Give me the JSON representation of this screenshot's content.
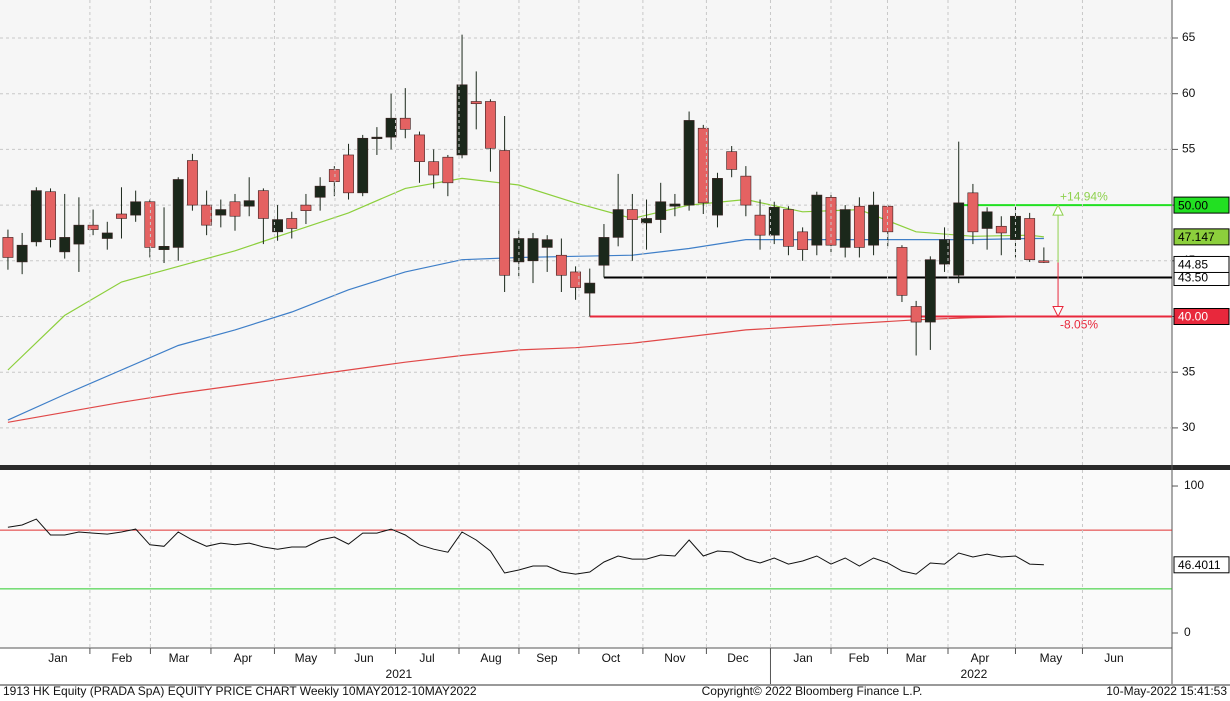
{
  "chart_data": [
    {
      "type": "candlestick",
      "open": [
        47.1,
        44.9,
        46.7,
        51.2,
        45.8,
        46.5,
        48.2,
        47.0,
        49.2,
        49.1,
        50.3,
        46.0,
        46.2,
        54.0,
        50.0,
        49.1,
        50.3,
        49.9,
        51.3,
        47.6,
        48.8,
        50.0,
        50.7,
        53.2,
        54.5,
        51.1,
        56.0,
        56.1,
        57.8,
        56.3,
        53.9,
        54.3,
        54.5,
        59.3,
        59.3,
        54.9,
        44.9,
        45.0,
        46.2,
        45.5,
        44.0,
        42.1,
        44.6,
        47.1,
        49.6,
        48.4,
        48.7,
        49.9,
        50.0,
        56.9,
        49.1,
        54.8,
        52.6,
        49.1,
        47.3,
        49.6,
        47.6,
        46.4,
        50.7,
        46.2,
        49.9,
        46.4,
        49.9,
        46.2,
        40.9,
        39.5,
        44.7,
        43.7,
        51.1,
        47.9,
        48.1,
        46.9,
        48.8,
        45.0
      ],
      "high": [
        47.8,
        47.5,
        51.6,
        51.5,
        51.0,
        50.7,
        49.6,
        48.5,
        51.6,
        51.3,
        50.5,
        49.8,
        52.5,
        54.6,
        51.3,
        50.5,
        51.0,
        52.5,
        51.5,
        50.0,
        49.4,
        51.0,
        52.5,
        53.5,
        55.5,
        56.3,
        57.0,
        60.0,
        60.5,
        56.6,
        55.0,
        54.5,
        65.3,
        62.0,
        59.5,
        58.0,
        47.8,
        47.5,
        47.3,
        47.0,
        44.5,
        44.3,
        48.3,
        52.8,
        51.0,
        50.5,
        52.0,
        51.0,
        58.4,
        57.2,
        52.9,
        55.3,
        53.5,
        50.5,
        50.3,
        49.9,
        48.0,
        51.2,
        51.0,
        50.0,
        50.7,
        51.2,
        50.0,
        46.4,
        41.4,
        45.4,
        48.0,
        55.7,
        51.9,
        49.8,
        49.0,
        49.9,
        49.3,
        46.2
      ],
      "low": [
        44.2,
        43.8,
        46.3,
        46.2,
        45.2,
        44.0,
        47.3,
        46.0,
        47.0,
        48.5,
        45.3,
        44.8,
        45.0,
        49.5,
        47.3,
        48.0,
        47.7,
        49.0,
        46.5,
        46.8,
        47.0,
        48.3,
        49.5,
        50.8,
        50.5,
        50.8,
        54.5,
        55.0,
        56.0,
        52.0,
        51.5,
        50.8,
        54.2,
        56.8,
        53.0,
        42.2,
        43.6,
        43.0,
        44.0,
        42.2,
        41.5,
        40.0,
        43.5,
        46.3,
        45.0,
        46.0,
        47.5,
        49.0,
        49.5,
        49.2,
        48.0,
        52.5,
        49.0,
        46.0,
        46.5,
        45.5,
        45.0,
        45.5,
        45.5,
        45.3,
        45.3,
        45.5,
        46.3,
        41.3,
        36.5,
        37.0,
        44.0,
        43.0,
        46.5,
        46.0,
        45.5,
        45.3,
        44.9,
        44.8
      ],
      "close": [
        45.3,
        46.4,
        51.3,
        46.9,
        47.1,
        48.2,
        47.8,
        47.5,
        48.8,
        50.3,
        46.2,
        46.3,
        52.3,
        50.0,
        48.2,
        49.6,
        49.0,
        50.4,
        48.8,
        48.7,
        47.9,
        49.5,
        51.7,
        52.1,
        51.1,
        56.0,
        56.1,
        57.8,
        56.8,
        53.9,
        52.7,
        52.0,
        60.8,
        59.1,
        55.1,
        43.7,
        47.0,
        47.0,
        46.9,
        43.7,
        42.6,
        43.0,
        47.1,
        49.6,
        48.7,
        48.8,
        50.3,
        50.1,
        57.6,
        50.2,
        52.4,
        53.2,
        50.0,
        47.3,
        49.8,
        46.3,
        46.0,
        50.9,
        46.4,
        49.6,
        46.2,
        50.0,
        47.6,
        41.9,
        39.5,
        45.1,
        46.9,
        50.2,
        47.6,
        49.4,
        47.5,
        49.0,
        45.1,
        44.85
      ],
      "up_color": "#1b281b",
      "down_color": "#e46262",
      "xlim": [
        -0.56,
        82.03
      ],
      "ylim": [
        26.67,
        68.41
      ],
      "yticks": [
        30,
        35,
        40,
        45,
        50,
        55,
        60,
        65
      ],
      "grid": true,
      "moving_averages": [
        {
          "color": "#8ccf3c",
          "value_box": true,
          "x": [
            0,
            4,
            8,
            12,
            16,
            20,
            24,
            28,
            32,
            36,
            40,
            44,
            48,
            52,
            56,
            60,
            64,
            68,
            72,
            73
          ],
          "values": [
            35.2,
            40.1,
            43.1,
            44.5,
            45.9,
            47.6,
            49.3,
            51.5,
            52.4,
            51.8,
            50.2,
            48.8,
            50.0,
            50.5,
            49.4,
            49.6,
            47.6,
            47.2,
            47.3,
            47.147
          ]
        },
        {
          "color": "#3f7fc8",
          "value_box": false,
          "x": [
            0,
            4,
            8,
            12,
            16,
            20,
            24,
            28,
            32,
            36,
            40,
            44,
            48,
            52,
            56,
            60,
            64,
            68,
            72,
            73
          ],
          "values": [
            30.7,
            33.0,
            35.2,
            37.4,
            38.8,
            40.4,
            42.4,
            44.0,
            45.1,
            45.3,
            45.4,
            45.5,
            46.1,
            46.9,
            46.9,
            46.9,
            46.9,
            46.9,
            47.0,
            47.0
          ]
        },
        {
          "color": "#e04848",
          "value_box": false,
          "x": [
            0,
            4,
            8,
            12,
            16,
            20,
            24,
            28,
            32,
            36,
            40,
            44,
            48,
            52,
            56,
            60,
            64,
            68,
            72,
            73
          ],
          "values": [
            30.5,
            31.4,
            32.3,
            33.1,
            33.8,
            34.5,
            35.2,
            35.9,
            36.5,
            37.0,
            37.2,
            37.6,
            38.2,
            38.8,
            39.1,
            39.4,
            39.7,
            39.9,
            40.0,
            40.0
          ]
        }
      ],
      "levels": [
        {
          "value": 50,
          "label": "50.00",
          "color": "#22e022",
          "text_color": "#000000",
          "from_x": 67
        },
        {
          "value": 43.5,
          "label": "43.50",
          "color": "#000000",
          "text_color": "#000000",
          "from_x": 42
        },
        {
          "value": 40,
          "label": "40.00",
          "color": "#e8283c",
          "text_color": "#ffffff",
          "from_x": 41
        }
      ],
      "annotations": [
        {
          "text": "+14.94%",
          "color": "#8fd14f",
          "level": 0,
          "arrow_x": 74
        },
        {
          "text": "-8.05%",
          "color": "#e8283c",
          "level": 2,
          "arrow_x": 74
        }
      ]
    },
    {
      "type": "line",
      "values": [
        72,
        73.5,
        77.5,
        66.7,
        66.7,
        68.7,
        68,
        67.3,
        68.7,
        70.7,
        60,
        59,
        68.7,
        63.3,
        59,
        61.2,
        60,
        61.2,
        58.5,
        57,
        58.5,
        58.5,
        63.3,
        65.3,
        60.5,
        68,
        68,
        70.7,
        66.7,
        60,
        57,
        55,
        68.7,
        63.3,
        55.8,
        40.8,
        42.9,
        45.6,
        45.6,
        41.5,
        40.1,
        41.5,
        48.3,
        52.4,
        50.3,
        50.3,
        53.1,
        52.4,
        63.3,
        52.4,
        55.8,
        55.1,
        50.3,
        47.6,
        51,
        46.9,
        49,
        52.4,
        46.9,
        51,
        45.6,
        51,
        47.6,
        42.2,
        40.1,
        47.6,
        46.9,
        54.4,
        51.7,
        53.7,
        51.7,
        52.4,
        46.9,
        46.4011
      ],
      "color": "#111111",
      "xlim": [
        -0.56,
        82.03
      ],
      "ylim": [
        -10.2,
        110.9
      ],
      "yticks": [
        0,
        100
      ],
      "levels": [
        {
          "value": 70,
          "color": "#e03030"
        },
        {
          "value": 30,
          "color": "#2bcc2b"
        }
      ],
      "xticks": [
        {
          "value": 3.52,
          "label": "Jan"
        },
        {
          "value": 8.03,
          "label": "Feb"
        },
        {
          "value": 12.05,
          "label": "Mar"
        },
        {
          "value": 16.56,
          "label": "Apr"
        },
        {
          "value": 21.0,
          "label": "May"
        },
        {
          "value": 25.09,
          "label": "Jun"
        },
        {
          "value": 29.53,
          "label": "Jul"
        },
        {
          "value": 34.04,
          "label": "Aug"
        },
        {
          "value": 37.98,
          "label": "Sep"
        },
        {
          "value": 42.49,
          "label": "Oct"
        },
        {
          "value": 47.0,
          "label": "Nov"
        },
        {
          "value": 51.44,
          "label": "Dec"
        },
        {
          "value": 56.03,
          "label": "Jan"
        },
        {
          "value": 59.97,
          "label": "Feb"
        },
        {
          "value": 63.99,
          "label": "Mar"
        },
        {
          "value": 68.5,
          "label": "Apr"
        },
        {
          "value": 73.5,
          "label": "May"
        },
        {
          "value": 77.94,
          "label": "Jun"
        }
      ],
      "year_labels": [
        {
          "value": 27.55,
          "label": "2021"
        },
        {
          "value": 68.07,
          "label": "2022"
        }
      ]
    }
  ],
  "footer": {
    "left": "1913 HK Equity (PRADA SpA) EQUITY PRICE CHART  Weekly 10MAY2012-10MAY2022",
    "center": "Copyright© 2022 Bloomberg Finance L.P.",
    "right": "10-May-2022 15:41:53"
  }
}
